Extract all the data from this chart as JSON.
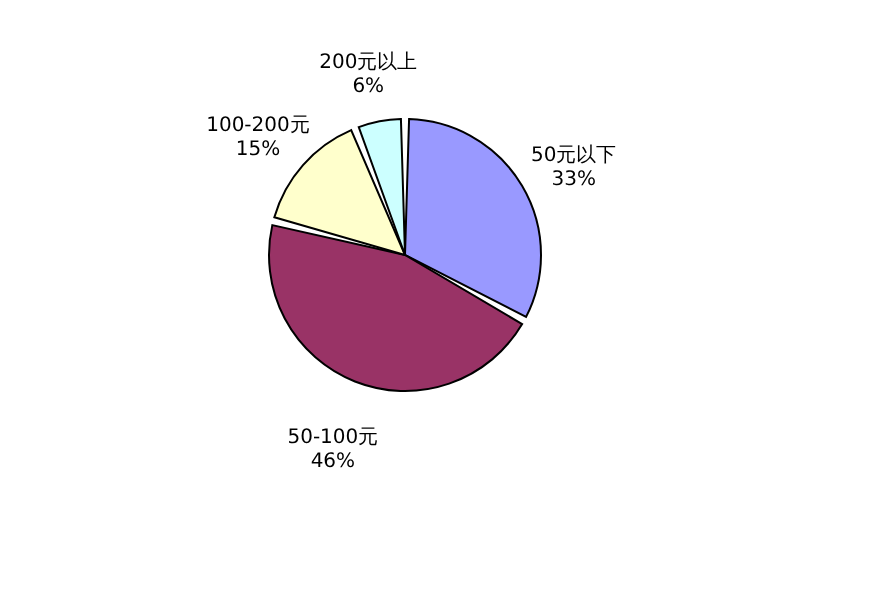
{
  "chart_data": {
    "type": "pie",
    "categories": [
      "50元以下",
      "50-100元",
      "100-200元",
      "200元以上"
    ],
    "values": [
      33,
      46,
      15,
      6
    ],
    "colors": [
      "#9999ff",
      "#993366",
      "#ffffcc",
      "#ccffff"
    ],
    "value_labels": [
      "33%",
      "46%",
      "15%",
      "6%"
    ],
    "legend": false
  }
}
